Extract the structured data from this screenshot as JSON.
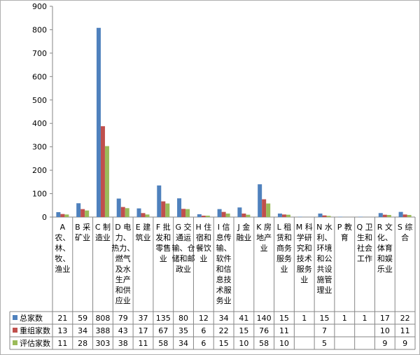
{
  "chart_data": {
    "type": "bar",
    "ylim": [
      0,
      900
    ],
    "yticks": [
      0,
      100,
      200,
      300,
      400,
      500,
      600,
      700,
      800,
      900
    ],
    "grid": false,
    "colors": [
      "#4f81bd",
      "#c0504d",
      "#9bbb59"
    ],
    "categories": [
      "A\n农、\n林、\n牧、\n渔业",
      "B 采\n矿业",
      "C 制\n造业",
      "D 电\n力、\n热力、\n燃气\n及水\n生产\n和供\n应业",
      "E 建\n筑业",
      "F 批\n发和\n零售\n业",
      "G 交\n通运\n输、仓\n储和邮\n政业",
      "H 住\n宿和\n餐饮\n业",
      "I 信\n息传\n输、\n软件\n和信\n息技\n术服\n务业",
      "J 金\n融业",
      "K 房\n地产\n业",
      "L 租\n赁和\n商务\n服务\n业",
      "M 科\n学研\n究和\n技术\n服务\n业",
      "N 水\n利、\n环境\n和公\n共设\n施管\n理业",
      "P 教\n育",
      "Q 卫\n生和\n社会\n工作",
      "R 文\n化、\n体育\n和娱\n乐业",
      "S 综\n合"
    ],
    "series": [
      {
        "name": "总家数",
        "values": [
          21,
          59,
          808,
          79,
          37,
          135,
          80,
          12,
          34,
          41,
          140,
          15,
          1,
          15,
          1,
          1,
          17,
          22
        ]
      },
      {
        "name": "重组家数",
        "values": [
          13,
          34,
          388,
          43,
          17,
          67,
          35,
          6,
          22,
          15,
          76,
          11,
          null,
          7,
          null,
          null,
          10,
          11
        ]
      },
      {
        "name": "评估家数",
        "values": [
          11,
          28,
          303,
          38,
          11,
          58,
          34,
          6,
          15,
          10,
          58,
          10,
          null,
          5,
          null,
          null,
          9,
          9
        ]
      }
    ]
  }
}
